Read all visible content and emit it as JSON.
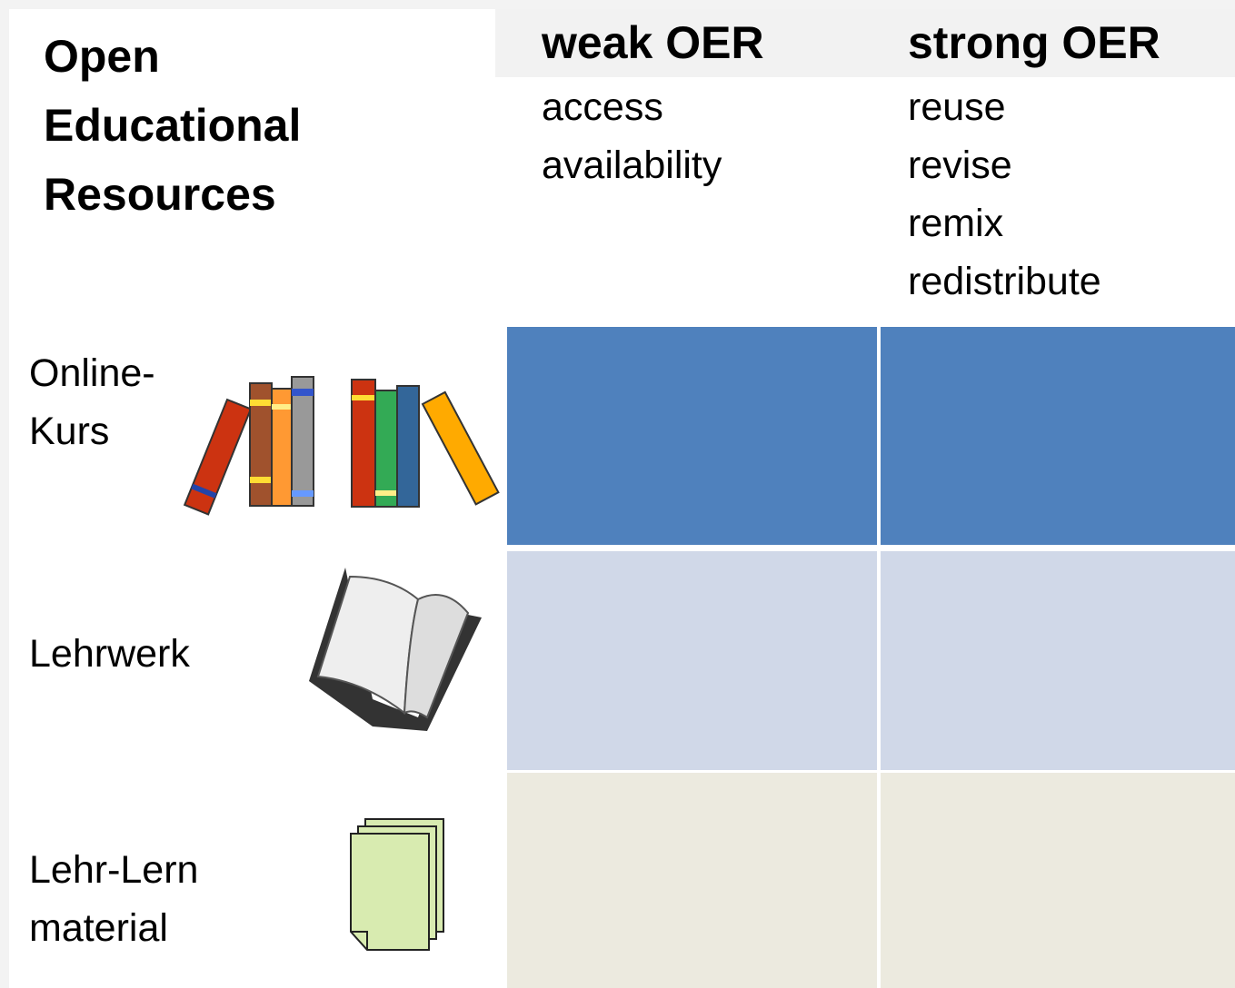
{
  "title_lines": [
    "Open",
    "Educational",
    "Resources"
  ],
  "columns": [
    {
      "heading": "weak OER",
      "items": [
        "access",
        "availability"
      ]
    },
    {
      "heading": "strong OER",
      "items": [
        "reuse",
        "revise",
        "remix",
        "redistribute"
      ]
    }
  ],
  "rows": [
    {
      "label_lines": [
        "Online-",
        "Kurs"
      ]
    },
    {
      "label_lines": [
        "Lehrwerk"
      ]
    },
    {
      "label_lines": [
        "Lehr-Lern",
        "material"
      ]
    }
  ]
}
